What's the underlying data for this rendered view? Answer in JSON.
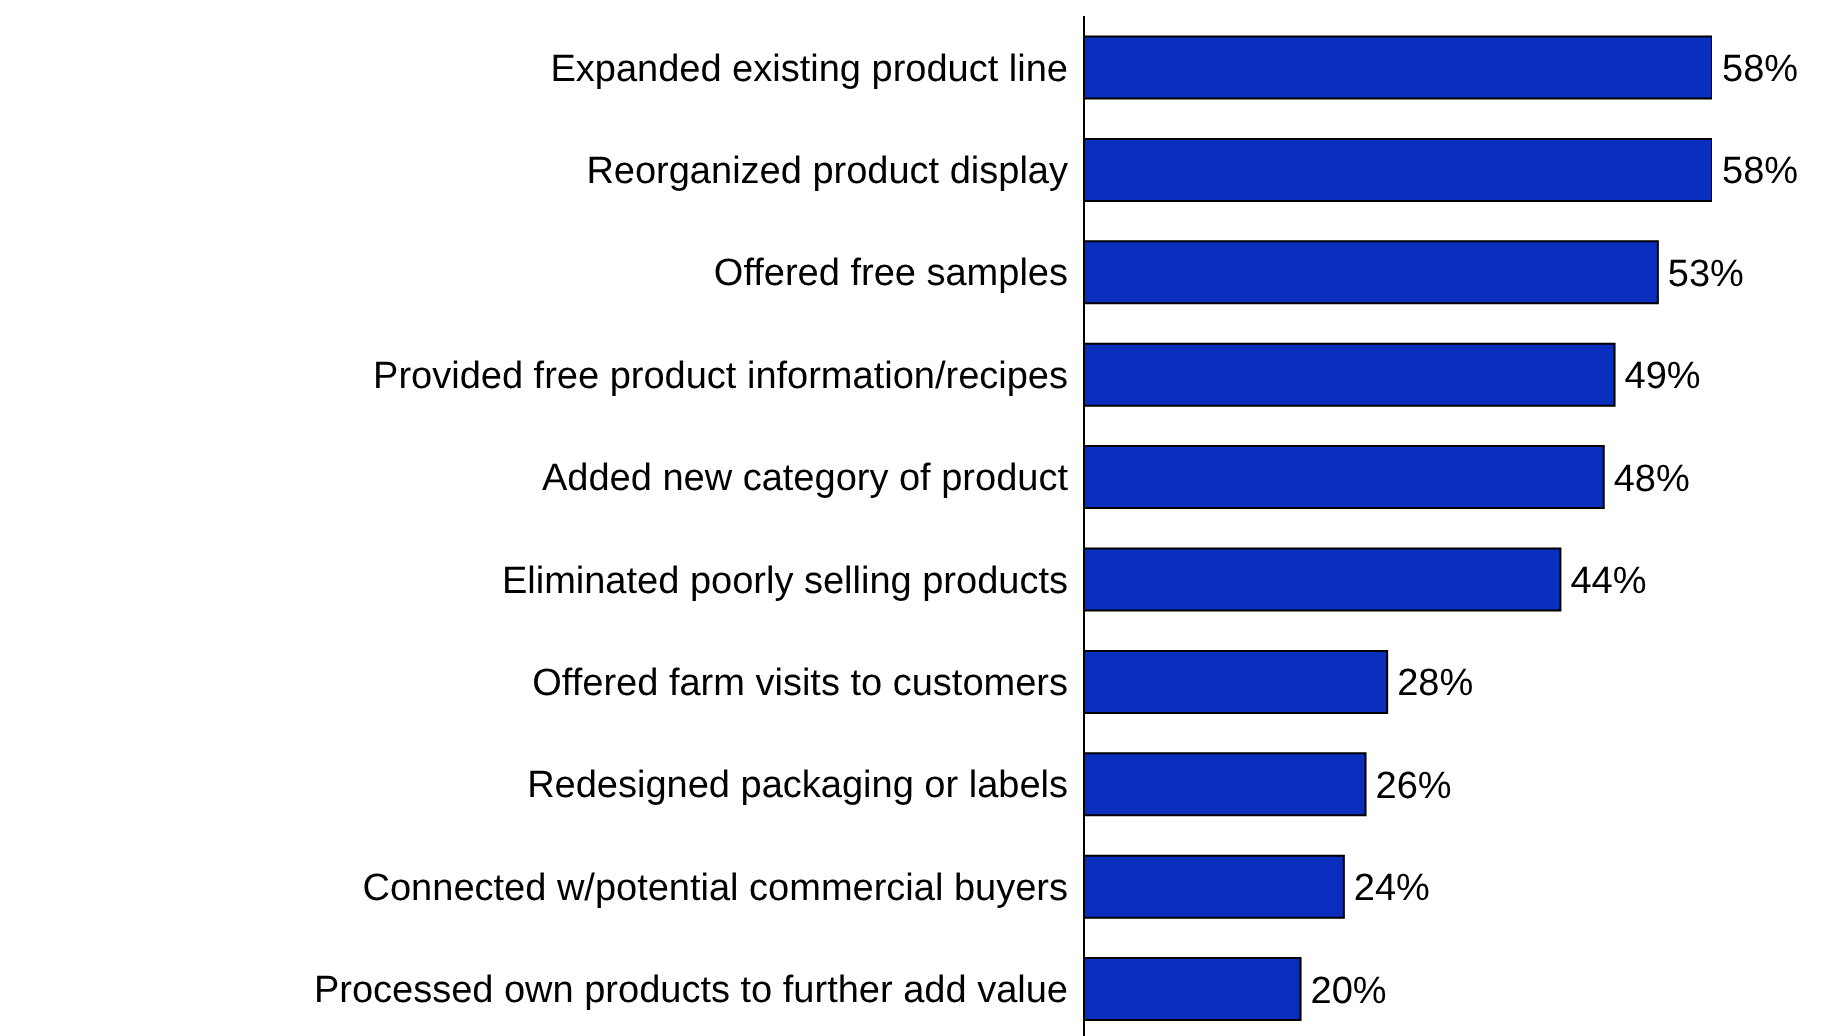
{
  "chart_data": {
    "type": "bar",
    "orientation": "horizontal",
    "categories": [
      "Expanded existing product line",
      "Reorganized product display",
      "Offered free samples",
      "Provided free product information/recipes",
      "Added new category of product",
      "Eliminated poorly selling products",
      "Offered farm visits to customers",
      "Redesigned packaging or labels",
      "Connected w/potential commercial buyers",
      "Processed own products to further add value"
    ],
    "values": [
      58,
      58,
      53,
      49,
      48,
      44,
      28,
      26,
      24,
      20
    ],
    "value_labels": [
      "58%",
      "58%",
      "53%",
      "49%",
      "48%",
      "44%",
      "28%",
      "26%",
      "24%",
      "20%"
    ],
    "color": "#0a2fbf",
    "grid": false,
    "legend": false
  }
}
